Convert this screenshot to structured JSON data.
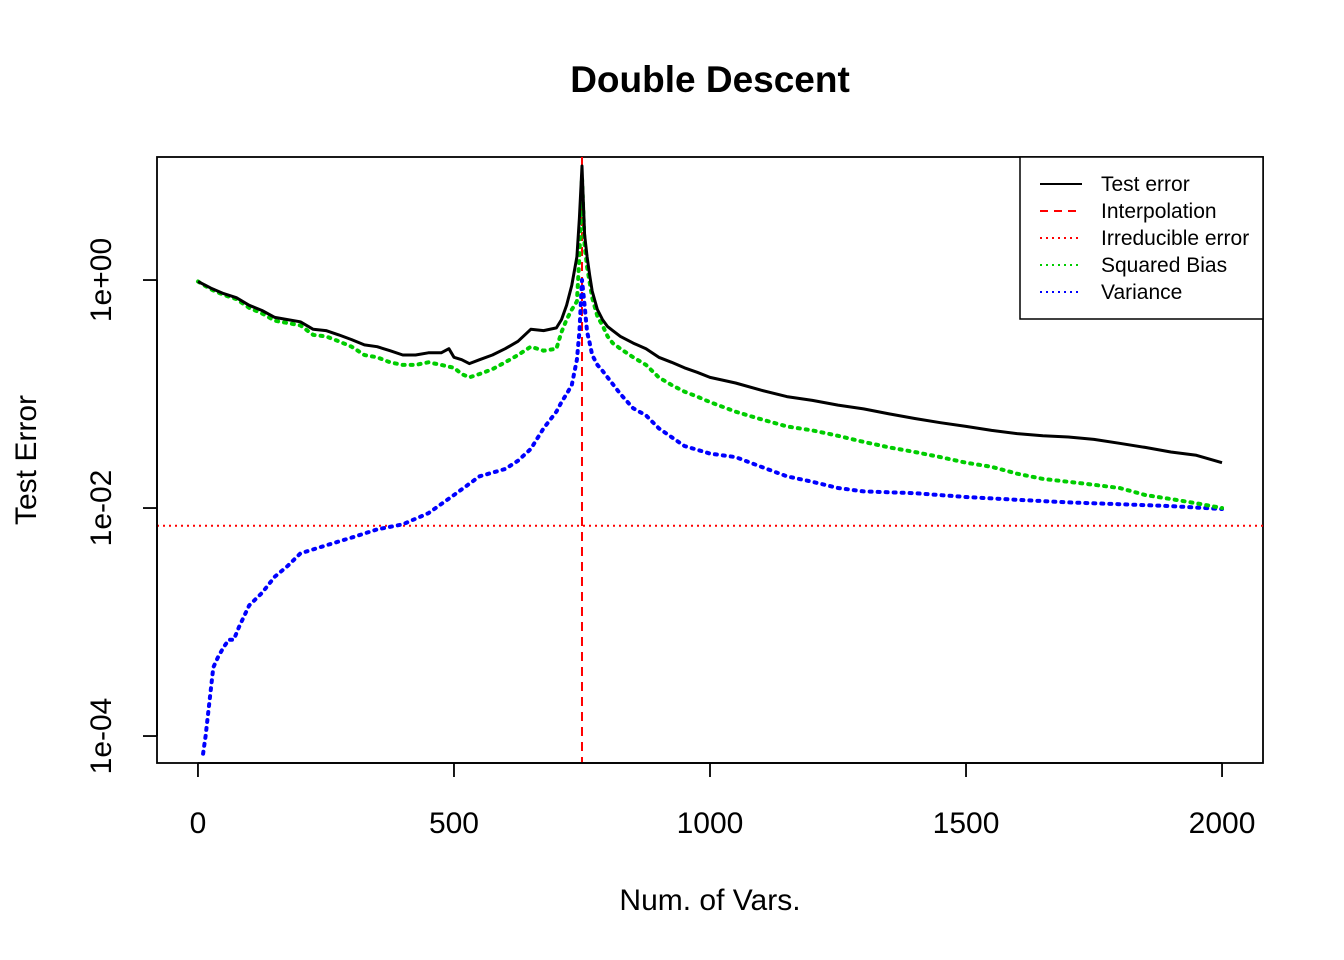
{
  "chart_data": {
    "type": "line",
    "title": "Double Descent",
    "xlabel": "Num. of Vars.",
    "ylabel": "Test Error",
    "y_scale": "log10",
    "xlim": [
      -80,
      2080
    ],
    "ylim": [
      5.8e-05,
      12
    ],
    "x_ticks": [
      0,
      500,
      1000,
      1500,
      2000
    ],
    "y_ticks": [
      {
        "value": 0.0001,
        "label": "1e-04"
      },
      {
        "value": 0.01,
        "label": "1e-02"
      },
      {
        "value": 1,
        "label": "1e+00"
      }
    ],
    "grid": false,
    "legend_position": "top-right",
    "interpolation_x": 750,
    "irreducible_error": 0.007,
    "series": [
      {
        "name": "Test error",
        "color": "#000000",
        "style": "solid",
        "x": [
          0,
          25,
          50,
          75,
          100,
          125,
          150,
          175,
          200,
          225,
          250,
          275,
          300,
          325,
          350,
          375,
          400,
          425,
          450,
          475,
          490,
          500,
          515,
          530,
          550,
          575,
          600,
          625,
          650,
          675,
          700,
          710,
          720,
          730,
          740,
          745,
          750,
          755,
          760,
          765,
          770,
          780,
          790,
          800,
          810,
          825,
          850,
          875,
          900,
          925,
          950,
          975,
          1000,
          1050,
          1100,
          1150,
          1200,
          1250,
          1300,
          1350,
          1400,
          1450,
          1500,
          1550,
          1600,
          1650,
          1700,
          1750,
          1800,
          1850,
          1900,
          1950,
          2000
        ],
        "y": [
          0.97,
          0.85,
          0.76,
          0.7,
          0.6,
          0.54,
          0.47,
          0.45,
          0.43,
          0.37,
          0.36,
          0.33,
          0.3,
          0.27,
          0.26,
          0.24,
          0.22,
          0.22,
          0.23,
          0.23,
          0.25,
          0.21,
          0.2,
          0.185,
          0.2,
          0.22,
          0.25,
          0.29,
          0.37,
          0.36,
          0.38,
          0.45,
          0.6,
          0.9,
          1.6,
          3.5,
          10.0,
          2.5,
          1.6,
          1.1,
          0.8,
          0.55,
          0.45,
          0.39,
          0.36,
          0.32,
          0.28,
          0.25,
          0.21,
          0.19,
          0.17,
          0.155,
          0.14,
          0.125,
          0.108,
          0.095,
          0.088,
          0.08,
          0.074,
          0.067,
          0.061,
          0.056,
          0.052,
          0.048,
          0.045,
          0.043,
          0.042,
          0.04,
          0.037,
          0.034,
          0.031,
          0.029,
          0.025
        ]
      },
      {
        "name": "Interpolation",
        "color": "#ff0000",
        "style": "dashed"
      },
      {
        "name": "Irreducible error",
        "color": "#ff0000",
        "style": "dotted"
      },
      {
        "name": "Squared Bias",
        "color": "#00cd00",
        "style": "dotted",
        "x": [
          0,
          25,
          50,
          75,
          100,
          125,
          150,
          175,
          200,
          225,
          250,
          275,
          300,
          325,
          350,
          375,
          400,
          425,
          450,
          475,
          500,
          515,
          530,
          550,
          575,
          600,
          625,
          650,
          675,
          700,
          710,
          720,
          730,
          740,
          745,
          750,
          755,
          760,
          765,
          770,
          780,
          790,
          800,
          810,
          825,
          850,
          875,
          900,
          925,
          950,
          975,
          1000,
          1050,
          1100,
          1150,
          1200,
          1250,
          1300,
          1350,
          1400,
          1450,
          1500,
          1550,
          1600,
          1650,
          1700,
          1750,
          1800,
          1850,
          1900,
          1950,
          2000
        ],
        "y": [
          0.97,
          0.83,
          0.74,
          0.68,
          0.57,
          0.51,
          0.44,
          0.42,
          0.4,
          0.33,
          0.32,
          0.29,
          0.26,
          0.22,
          0.21,
          0.19,
          0.18,
          0.18,
          0.19,
          0.18,
          0.17,
          0.15,
          0.14,
          0.15,
          0.165,
          0.19,
          0.22,
          0.26,
          0.24,
          0.25,
          0.35,
          0.45,
          0.55,
          0.65,
          1.6,
          8.0,
          2.0,
          1.3,
          0.95,
          0.7,
          0.48,
          0.4,
          0.32,
          0.28,
          0.25,
          0.21,
          0.18,
          0.14,
          0.12,
          0.105,
          0.095,
          0.085,
          0.07,
          0.06,
          0.052,
          0.048,
          0.043,
          0.038,
          0.034,
          0.031,
          0.028,
          0.025,
          0.023,
          0.02,
          0.018,
          0.017,
          0.016,
          0.015,
          0.013,
          0.012,
          0.011,
          0.01
        ]
      },
      {
        "name": "Variance",
        "color": "#0000ff",
        "style": "dotted",
        "x": [
          10,
          15,
          20,
          30,
          40,
          50,
          60,
          70,
          80,
          100,
          125,
          150,
          175,
          200,
          250,
          300,
          350,
          400,
          450,
          500,
          550,
          600,
          625,
          650,
          675,
          700,
          710,
          720,
          730,
          740,
          745,
          750,
          755,
          760,
          765,
          770,
          780,
          790,
          800,
          825,
          850,
          875,
          900,
          950,
          1000,
          1050,
          1100,
          1150,
          1200,
          1250,
          1300,
          1400,
          1500,
          1600,
          1700,
          1800,
          1900,
          2000
        ],
        "y": [
          7e-05,
          0.0001,
          0.00016,
          0.0004,
          0.0005,
          0.0006,
          0.0007,
          0.0007,
          0.0009,
          0.0014,
          0.0018,
          0.0025,
          0.0031,
          0.004,
          0.0047,
          0.0055,
          0.0065,
          0.0072,
          0.009,
          0.013,
          0.019,
          0.022,
          0.026,
          0.033,
          0.05,
          0.07,
          0.085,
          0.1,
          0.12,
          0.2,
          0.35,
          1.0,
          0.6,
          0.35,
          0.28,
          0.22,
          0.18,
          0.16,
          0.14,
          0.1,
          0.075,
          0.065,
          0.05,
          0.035,
          0.03,
          0.028,
          0.023,
          0.019,
          0.017,
          0.015,
          0.014,
          0.0135,
          0.0125,
          0.0118,
          0.0112,
          0.0108,
          0.0104,
          0.0098
        ]
      }
    ]
  }
}
